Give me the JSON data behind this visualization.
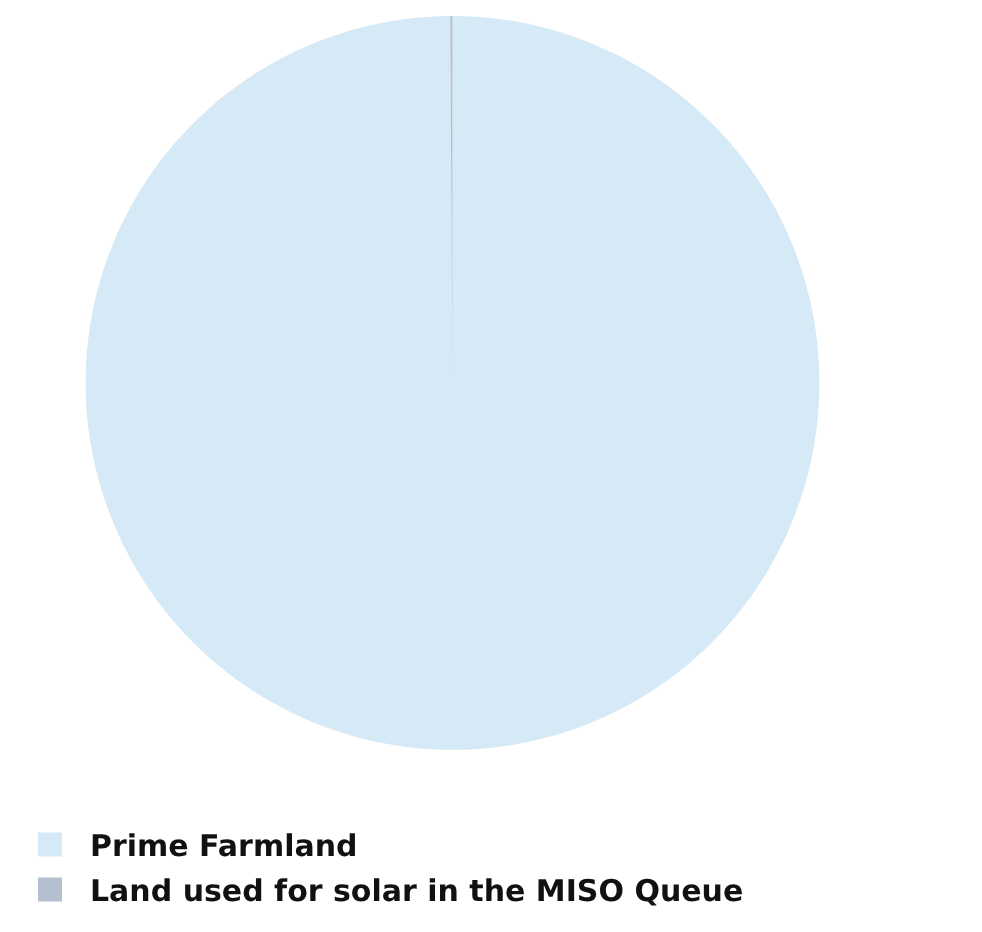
{
  "chart_data": {
    "type": "pie",
    "categories": [
      "Prime Farmland",
      "Land used for solar in the MISO Queue"
    ],
    "values": [
      99.9,
      0.1
    ],
    "colors": [
      "#d6e9f6",
      "#b4bfcf"
    ],
    "legend": "bottom"
  }
}
